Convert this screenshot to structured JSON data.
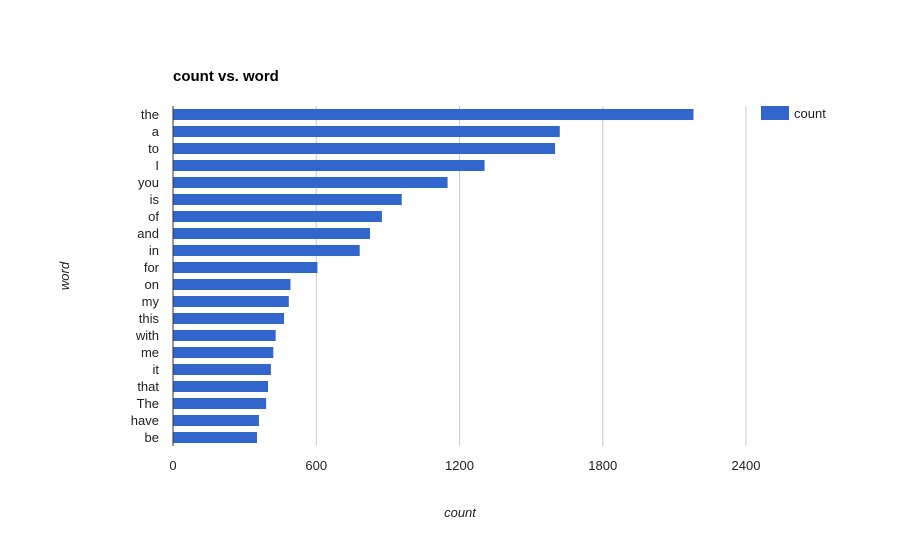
{
  "chart_data": {
    "type": "bar",
    "orientation": "horizontal",
    "title": "count vs. word",
    "xlabel": "count",
    "ylabel": "word",
    "categories": [
      "the",
      "a",
      "to",
      "I",
      "you",
      "is",
      "of",
      "and",
      "in",
      "for",
      "on",
      "my",
      "this",
      "with",
      "me",
      "it",
      "that",
      "The",
      "have",
      "be"
    ],
    "series": [
      {
        "name": "count",
        "color": "#3366cc",
        "values": [
          2180,
          1620,
          1600,
          1305,
          1150,
          958,
          875,
          825,
          782,
          605,
          492,
          485,
          465,
          430,
          420,
          410,
          398,
          390,
          360,
          352
        ]
      }
    ],
    "xlim": [
      0,
      2700
    ],
    "xticks": [
      0,
      600,
      1200,
      1800,
      2400
    ],
    "grid": true,
    "legend": "top-right"
  }
}
